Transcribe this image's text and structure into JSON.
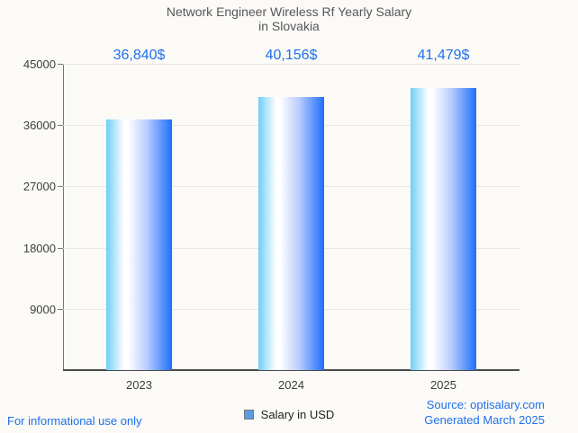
{
  "title": {
    "line1": "Network Engineer Wireless Rf Yearly Salary",
    "line2": "in Slovakia"
  },
  "chart_data": {
    "type": "bar",
    "title": "Network Engineer Wireless Rf Yearly Salary in Slovakia",
    "categories": [
      "2023",
      "2024",
      "2025"
    ],
    "values": [
      36840,
      40156,
      41479
    ],
    "value_labels": [
      "36,840$",
      "40,156$",
      "41,479$"
    ],
    "series": [
      {
        "name": "Salary in USD",
        "values": [
          36840,
          40156,
          41479
        ]
      }
    ],
    "xlabel": "",
    "ylabel": "",
    "ylim": [
      0,
      45000
    ],
    "yticks": [
      45000,
      36000,
      27000,
      18000,
      9000
    ],
    "grid": true,
    "legend_position": "bottom-center",
    "bar_gradient": [
      "#6fcef8",
      "#ffffff",
      "#1e6ffb"
    ],
    "accent_color": "#1e70ee"
  },
  "legend": {
    "label": "Salary in USD",
    "swatch_color": "#5a9de4"
  },
  "footer": {
    "disclaimer": "For informational use only",
    "source": "Source: optisalary.com",
    "generated": "Generated March 2025"
  }
}
